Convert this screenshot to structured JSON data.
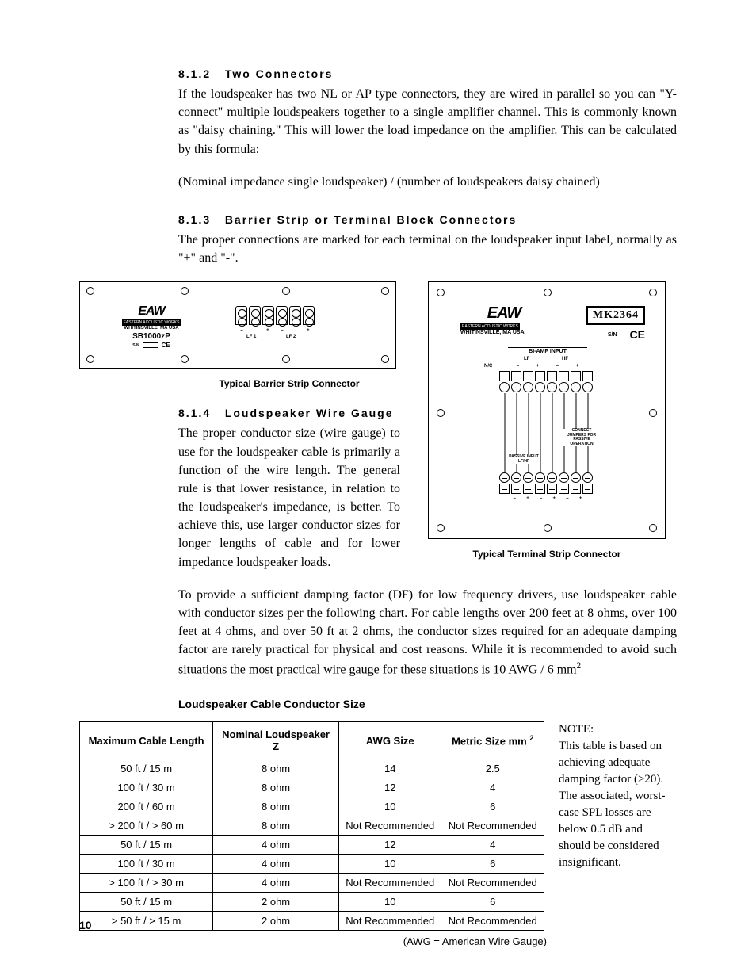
{
  "sections": {
    "s812": {
      "num": "8.1.2",
      "title": "Two Connectors",
      "p1": "If the loudspeaker has two NL or AP type connectors, they are wired in parallel so you can \"Y-connect\" multiple loudspeakers together to a single amplifier channel. This is commonly known as \"daisy chaining.\" This will lower the load impedance on the amplifier. This can be calculated by this formula:",
      "p2": "(Nominal impedance single loudspeaker) / (number of loudspeakers daisy chained)"
    },
    "s813": {
      "num": "8.1.3",
      "title": "Barrier Strip or Terminal Block Connectors",
      "p1": "The proper connections are marked for each terminal on the loudspeaker input label, normally as \"+\" and \"-\"."
    },
    "s814": {
      "num": "8.1.4",
      "title": "Loudspeaker Wire Gauge",
      "p1": "The proper conductor size (wire gauge) to use for the loudspeaker cable is primarily a function of the wire length. The general rule is that lower resistance, in relation to the loudspeaker's impedance, is better. To achieve this, use larger conductor sizes for longer lengths of cable and for lower impedance loudspeaker loads.",
      "p2a": "To provide a sufficient damping factor (DF) for low frequency drivers, use loudspeaker cable with conductor sizes per the following chart. For cable lengths over 200 feet at 8 ohms, over 100 feet at 4 ohms, and over 50 ft at 2 ohms, the conductor sizes required for an adequate damping factor are rarely practical for physical and cost reasons. While it is recommended to avoid such situations the most practical wire gauge for these situations is 10 AWG / 6 mm",
      "p2b": "2"
    }
  },
  "figures": {
    "left_caption": "Typical Barrier Strip Connector",
    "right_caption": "Typical Terminal Strip Connector",
    "brand": "EAW",
    "brand_sub": "EASTERN ACOUSTIC WORKS",
    "location": "WHITINSVILLE, MA USA",
    "model1": "SB1000zP",
    "model2": "MK2364",
    "sn": "S/N",
    "ce": "CE",
    "lf1": "LF 1",
    "lf2": "LF 2",
    "biamp": "BI-AMP INPUT",
    "lf": "LF",
    "hf": "HF",
    "nc": "N/C",
    "connect": "CONNECT JUMPERS FOR PASSIVE OPERATION",
    "passive": "PASSIVE INPUT LF/HF",
    "minus": "–",
    "plus": "+"
  },
  "table": {
    "title": "Loudspeaker Cable Conductor Size",
    "headers": [
      "Maximum Cable Length",
      "Nominal Loudspeaker Z",
      "AWG Size",
      "Metric Size mm"
    ],
    "header_sup": "2",
    "rows": [
      [
        "50 ft /   15 m",
        "8 ohm",
        "14",
        "2.5"
      ],
      [
        "100 ft /   30 m",
        "8 ohm",
        "12",
        "4"
      ],
      [
        "200 ft /   60 m",
        "8 ohm",
        "10",
        "6"
      ],
      [
        ">  200 ft / > 60 m",
        "8 ohm",
        "Not Recommended",
        "Not Recommended"
      ],
      [
        "50 ft /   15 m",
        "4 ohm",
        "12",
        "4"
      ],
      [
        "100 ft /   30 m",
        "4 ohm",
        "10",
        "6"
      ],
      [
        ">  100 ft / > 30 m",
        "4 ohm",
        "Not Recommended",
        "Not Recommended"
      ],
      [
        "50 ft /   15 m",
        "2 ohm",
        "10",
        "6"
      ],
      [
        ">    50 ft / > 15 m",
        "2 ohm",
        "Not Recommended",
        "Not Recommended"
      ]
    ],
    "awg_note": "(AWG = American Wire Gauge)"
  },
  "note": {
    "heading": "NOTE:",
    "text": "This table is based on achieving adequate damping factor (>20). The associated, worst-case SPL losses are below 0.5 dB and should be considered insignificant."
  },
  "page_num": "10"
}
